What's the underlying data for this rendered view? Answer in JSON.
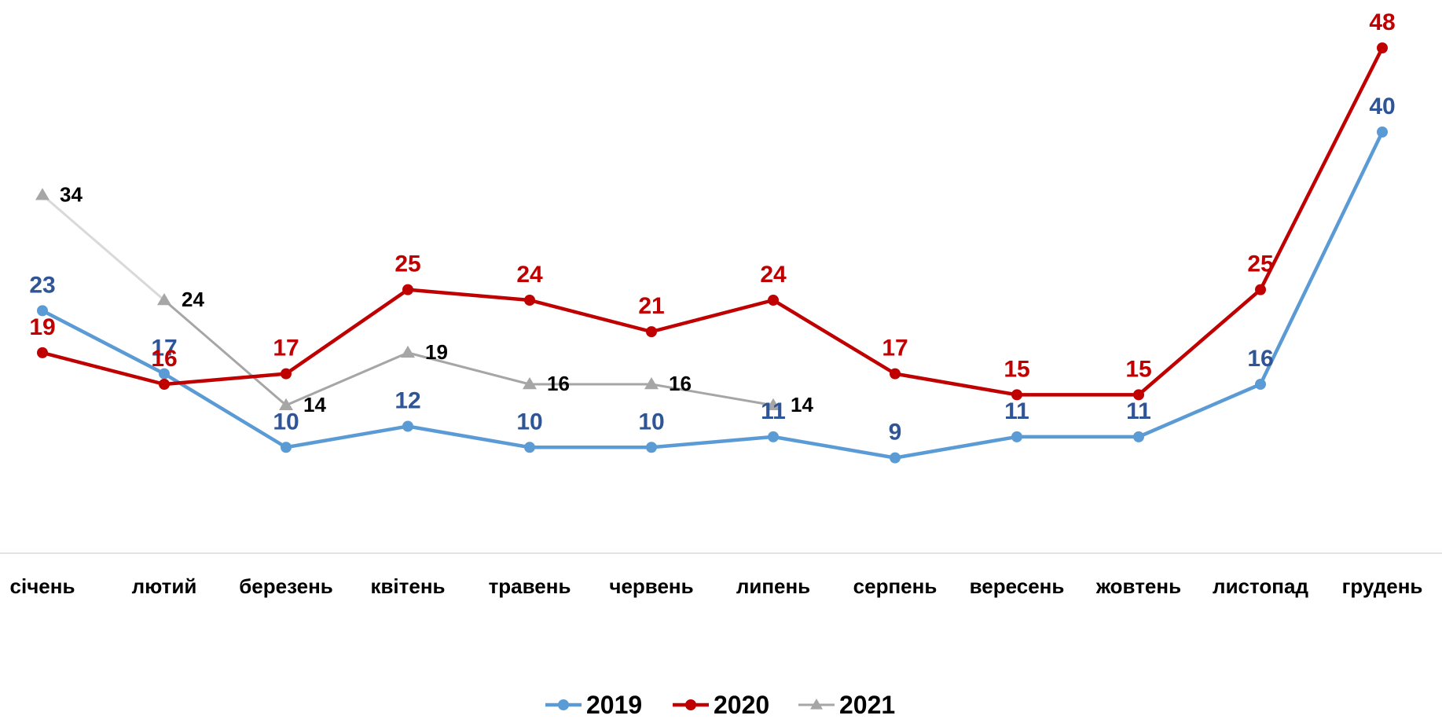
{
  "chart_data": {
    "type": "line",
    "title": "",
    "xlabel": "",
    "ylabel": "",
    "categories": [
      "січень",
      "лютий",
      "березень",
      "квітень",
      "травень",
      "червень",
      "липень",
      "серпень",
      "вересень",
      "жовтень",
      "листопад",
      "грудень"
    ],
    "ylim": [
      0,
      50
    ],
    "grid": false,
    "legend_position": "bottom-center",
    "series": [
      {
        "name": "2019",
        "color": "#5B9BD5",
        "label_color": "#2F5597",
        "marker": "circle",
        "values": [
          23,
          17,
          10,
          12,
          10,
          10,
          11,
          9,
          11,
          11,
          16,
          40
        ]
      },
      {
        "name": "2020",
        "color": "#C00000",
        "label_color": "#C00000",
        "marker": "circle",
        "values": [
          19,
          16,
          17,
          25,
          24,
          21,
          24,
          17,
          15,
          15,
          25,
          48
        ]
      },
      {
        "name": "2021",
        "color": "#A6A6A6",
        "label_color": "#000000",
        "marker": "triangle",
        "values": [
          34,
          24,
          14,
          19,
          16,
          16,
          14,
          null,
          null,
          null,
          null,
          null
        ]
      }
    ]
  }
}
